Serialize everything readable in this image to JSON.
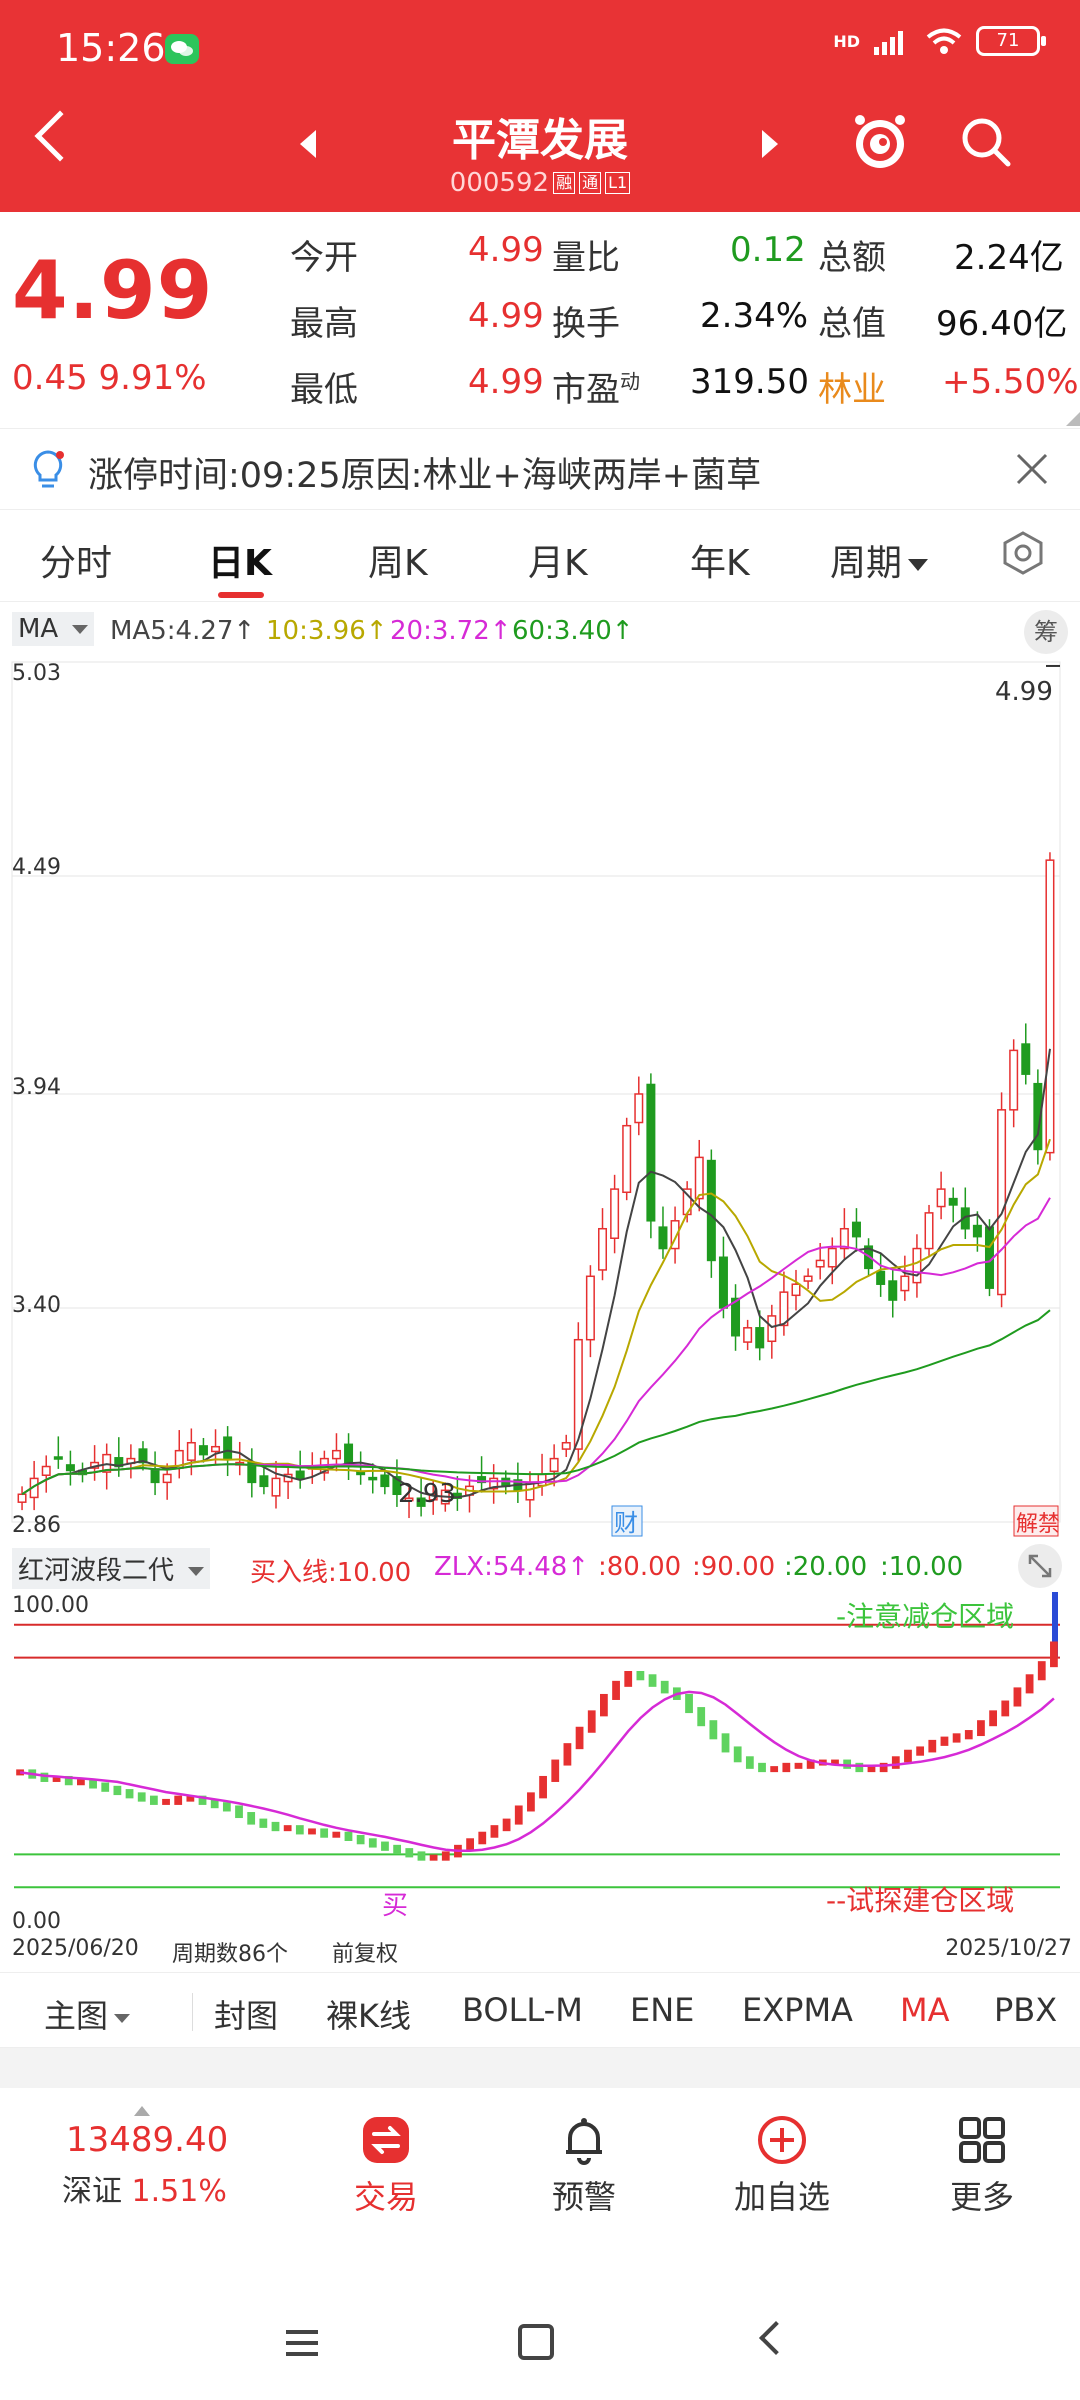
{
  "status": {
    "time": "15:26",
    "network": "HD",
    "battery": "71"
  },
  "header": {
    "name": "平潭发展",
    "code": "000592",
    "tags": [
      "融",
      "通",
      "L1"
    ]
  },
  "quote": {
    "price": "4.99",
    "change": "0.45",
    "change_pct": "9.91%",
    "rows": [
      [
        {
          "label": "今开",
          "value": "4.99"
        },
        {
          "label": "量比",
          "value": "0.12"
        },
        {
          "label": "总额",
          "value": "2.24亿"
        }
      ],
      [
        {
          "label": "最高",
          "value": "4.99"
        },
        {
          "label": "换手",
          "value": "2.34%"
        },
        {
          "label": "总值",
          "value": "96.40亿"
        }
      ],
      [
        {
          "label": "最低",
          "value": "4.99"
        },
        {
          "label": "市盈",
          "sup": "动",
          "value": "319.50"
        },
        {
          "label": "林业",
          "value": "+5.50%"
        }
      ]
    ]
  },
  "banner": {
    "text": "涨停时间:09:25原因:林业+海峡两岸+菌草"
  },
  "tabs": {
    "items": [
      "分时",
      "日K",
      "周K",
      "月K",
      "年K",
      "周期"
    ],
    "active": "日K"
  },
  "ma_legend": {
    "select": "MA",
    "items": [
      {
        "text": "MA5:4.27↑",
        "color": "#444444"
      },
      {
        "text": "10:3.96↑",
        "color": "#b8a800"
      },
      {
        "text": "20:3.72↑",
        "color": "#d62ad6"
      },
      {
        "text": "60:3.40↑",
        "color": "#1f9b1f"
      }
    ],
    "chou": "筹"
  },
  "kline": {
    "y_labels": [
      "5.03",
      "4.49",
      "3.94",
      "3.40",
      "2.86"
    ],
    "price_tag": "4.99",
    "low_label": "2.93",
    "event_cai": "财",
    "event_end": "解禁"
  },
  "osc_legend": {
    "select": "红河波段二代",
    "items": [
      {
        "text": "买入线:10.00",
        "color": "#e63030"
      },
      {
        "text": "ZLX:54.48↑",
        "color": "#d62ad6"
      },
      {
        "text": ":80.00",
        "color": "#e63030"
      },
      {
        "text": ":90.00",
        "color": "#e63030"
      },
      {
        "text": ":20.00",
        "color": "#1f9b1f"
      },
      {
        "text": ":10.00",
        "color": "#1f9b1f"
      }
    ]
  },
  "osc": {
    "y_top": "100.00",
    "y_bottom": "0.00",
    "zone_top": "-注意减仓区域",
    "zone_bottom": "--试探建仓区域",
    "buy_mark": "买"
  },
  "footer_meta": {
    "start_date": "2025/06/20",
    "periods": "周期数86个",
    "adjust": "前复权",
    "end_date": "2025/10/27"
  },
  "indicators": {
    "items": [
      "主图",
      "封图",
      "裸K线",
      "BOLL-M",
      "ENE",
      "EXPMA",
      "MA",
      "PBX"
    ],
    "active": "MA"
  },
  "bottom_nav": {
    "index_value": "13489.40",
    "index_name": "深证",
    "index_change": "1.51%",
    "items": [
      {
        "label": "交易",
        "icon": "trade-icon"
      },
      {
        "label": "预警",
        "icon": "bell-icon"
      },
      {
        "label": "加自选",
        "icon": "add-circle-icon"
      },
      {
        "label": "更多",
        "icon": "grid-icon"
      }
    ]
  },
  "colors": {
    "accent": "#e83335",
    "up": "#e63030",
    "down": "#1f9b1f"
  }
}
